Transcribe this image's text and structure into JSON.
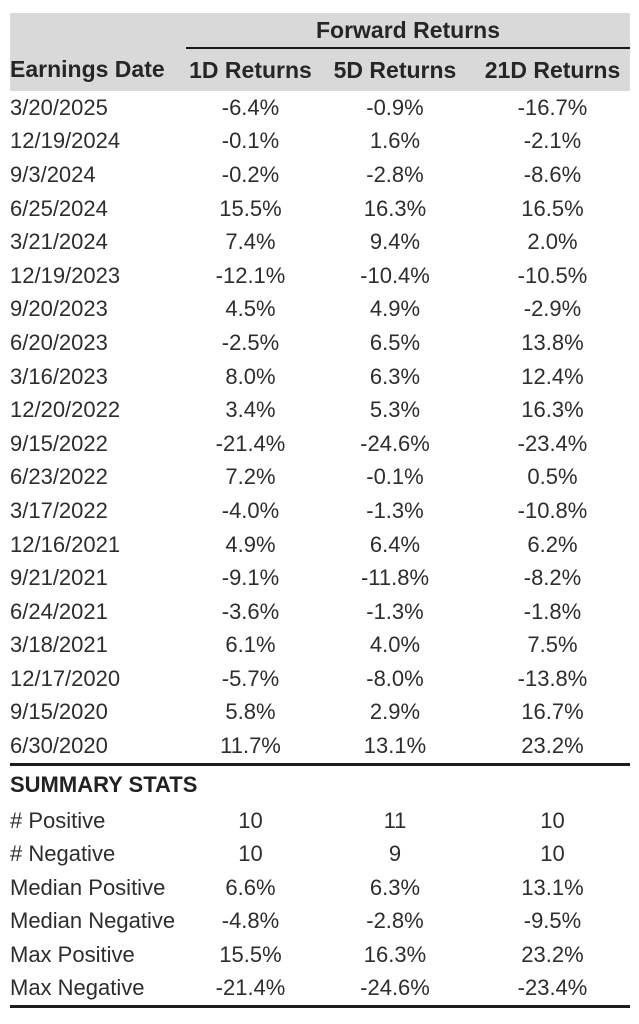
{
  "colors": {
    "header_bg": "#d9d9d9",
    "text": "#2d2d2d",
    "header_text": "#262626",
    "rule": "#1c1c1c",
    "page_bg": "#ffffff"
  },
  "chart_data": {
    "type": "table",
    "title": "Forward Returns",
    "group_header": "Forward Returns",
    "columns": [
      "Earnings Date",
      "1D Returns",
      "5D Returns",
      "21D Returns"
    ],
    "rows": [
      [
        "3/20/2025",
        "-6.4%",
        "-0.9%",
        "-16.7%"
      ],
      [
        "12/19/2024",
        "-0.1%",
        "1.6%",
        "-2.1%"
      ],
      [
        "9/3/2024",
        "-0.2%",
        "-2.8%",
        "-8.6%"
      ],
      [
        "6/25/2024",
        "15.5%",
        "16.3%",
        "16.5%"
      ],
      [
        "3/21/2024",
        "7.4%",
        "9.4%",
        "2.0%"
      ],
      [
        "12/19/2023",
        "-12.1%",
        "-10.4%",
        "-10.5%"
      ],
      [
        "9/20/2023",
        "4.5%",
        "4.9%",
        "-2.9%"
      ],
      [
        "6/20/2023",
        "-2.5%",
        "6.5%",
        "13.8%"
      ],
      [
        "3/16/2023",
        "8.0%",
        "6.3%",
        "12.4%"
      ],
      [
        "12/20/2022",
        "3.4%",
        "5.3%",
        "16.3%"
      ],
      [
        "9/15/2022",
        "-21.4%",
        "-24.6%",
        "-23.4%"
      ],
      [
        "6/23/2022",
        "7.2%",
        "-0.1%",
        "0.5%"
      ],
      [
        "3/17/2022",
        "-4.0%",
        "-1.3%",
        "-10.8%"
      ],
      [
        "12/16/2021",
        "4.9%",
        "6.4%",
        "6.2%"
      ],
      [
        "9/21/2021",
        "-9.1%",
        "-11.8%",
        "-8.2%"
      ],
      [
        "6/24/2021",
        "-3.6%",
        "-1.3%",
        "-1.8%"
      ],
      [
        "3/18/2021",
        "6.1%",
        "4.0%",
        "7.5%"
      ],
      [
        "12/17/2020",
        "-5.7%",
        "-8.0%",
        "-13.8%"
      ],
      [
        "9/15/2020",
        "5.8%",
        "2.9%",
        "16.7%"
      ],
      [
        "6/30/2020",
        "11.7%",
        "13.1%",
        "23.2%"
      ]
    ],
    "summary_header": "SUMMARY STATS",
    "summary_rows": [
      [
        "# Positive",
        "10",
        "11",
        "10"
      ],
      [
        "# Negative",
        "10",
        "9",
        "10"
      ],
      [
        "Median Positive",
        "6.6%",
        "6.3%",
        "13.1%"
      ],
      [
        "Median Negative",
        "-4.8%",
        "-2.8%",
        "-9.5%"
      ],
      [
        "Max Positive",
        "15.5%",
        "16.3%",
        "23.2%"
      ],
      [
        "Max Negative",
        "-21.4%",
        "-24.6%",
        "-23.4%"
      ]
    ]
  }
}
